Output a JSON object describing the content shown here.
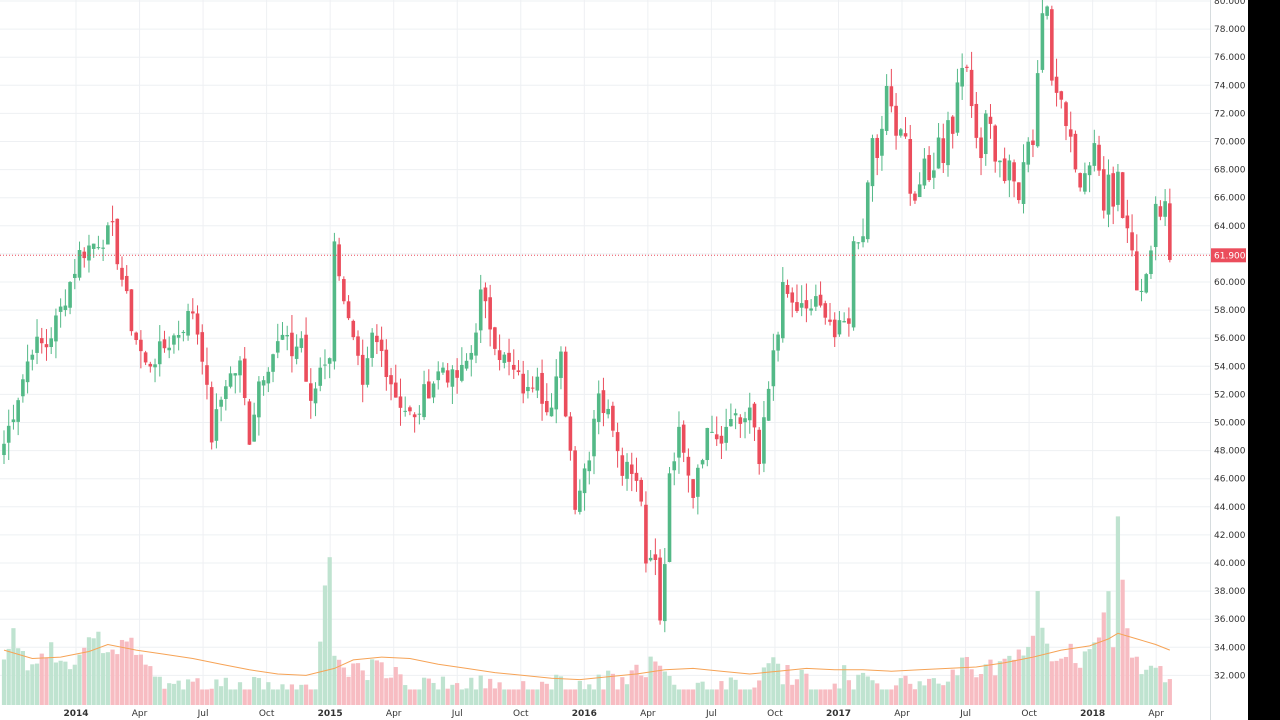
{
  "chart_data": {
    "type": "candlestick",
    "title": "",
    "colors": {
      "up": "#53b987",
      "down": "#eb4d5c",
      "up_volume": "#bfe3d0",
      "down_volume": "#f7bcc2",
      "ma": "#f6a356",
      "price_line": "#eb4d5c",
      "label_bg": "#eb4d5c"
    },
    "y_axis": {
      "min": 32,
      "max": 80,
      "step": 2,
      "decimals": 3,
      "position": "right"
    },
    "x_ticks": [
      {
        "label": "2014",
        "date": "2014-01",
        "bold": true
      },
      {
        "label": "Apr",
        "date": "2014-04",
        "bold": false
      },
      {
        "label": "Jul",
        "date": "2014-07",
        "bold": false
      },
      {
        "label": "Oct",
        "date": "2014-10",
        "bold": false
      },
      {
        "label": "2015",
        "date": "2015-01",
        "bold": true
      },
      {
        "label": "Apr",
        "date": "2015-04",
        "bold": false
      },
      {
        "label": "Jul",
        "date": "2015-07",
        "bold": false
      },
      {
        "label": "Oct",
        "date": "2015-10",
        "bold": false
      },
      {
        "label": "2016",
        "date": "2016-01",
        "bold": true
      },
      {
        "label": "Apr",
        "date": "2016-04",
        "bold": false
      },
      {
        "label": "Jul",
        "date": "2016-07",
        "bold": false
      },
      {
        "label": "Oct",
        "date": "2016-10",
        "bold": false
      },
      {
        "label": "2017",
        "date": "2017-01",
        "bold": true
      },
      {
        "label": "Apr",
        "date": "2017-04",
        "bold": false
      },
      {
        "label": "Jul",
        "date": "2017-07",
        "bold": false
      },
      {
        "label": "Oct",
        "date": "2017-10",
        "bold": false
      },
      {
        "label": "2018",
        "date": "2018-01",
        "bold": true
      },
      {
        "label": "Apr",
        "date": "2018-04",
        "bold": false
      }
    ],
    "last_price": 61.9,
    "last_price_label": "61.900",
    "close_anchors": [
      [
        0,
        48.5
      ],
      [
        3,
        52
      ],
      [
        6,
        55.5
      ],
      [
        9,
        55.5
      ],
      [
        12,
        58
      ],
      [
        16,
        62
      ],
      [
        20,
        63
      ],
      [
        23,
        63.5
      ],
      [
        27,
        57
      ],
      [
        30,
        54
      ],
      [
        33,
        55
      ],
      [
        37,
        56.5
      ],
      [
        40,
        58
      ],
      [
        42,
        55
      ],
      [
        44,
        49
      ],
      [
        47,
        53
      ],
      [
        50,
        54
      ],
      [
        52,
        49
      ],
      [
        54,
        53
      ],
      [
        57,
        55
      ],
      [
        59,
        56
      ],
      [
        61,
        55
      ],
      [
        63,
        56
      ],
      [
        64,
        53
      ],
      [
        65,
        51
      ],
      [
        67,
        54
      ],
      [
        69,
        55
      ],
      [
        70,
        62.5
      ],
      [
        71,
        61
      ],
      [
        73,
        57
      ],
      [
        75,
        54
      ],
      [
        76,
        52
      ],
      [
        78,
        56
      ],
      [
        80,
        55
      ],
      [
        81,
        54
      ],
      [
        83,
        52
      ],
      [
        85,
        51
      ],
      [
        87,
        50
      ],
      [
        89,
        52
      ],
      [
        91,
        53
      ],
      [
        93,
        54
      ],
      [
        95,
        53
      ],
      [
        97,
        53.5
      ],
      [
        99,
        55
      ],
      [
        101,
        59
      ],
      [
        103,
        57
      ],
      [
        105,
        55
      ],
      [
        107,
        54
      ],
      [
        109,
        53
      ],
      [
        111,
        52
      ],
      [
        113,
        54
      ],
      [
        114,
        52
      ],
      [
        116,
        51
      ],
      [
        118,
        54.5
      ],
      [
        119,
        51
      ],
      [
        120,
        48
      ],
      [
        121,
        44.5
      ],
      [
        122,
        45.5
      ],
      [
        124,
        48
      ],
      [
        125,
        50.5
      ],
      [
        126,
        52.5
      ],
      [
        127,
        51
      ],
      [
        129,
        50
      ],
      [
        131,
        47
      ],
      [
        133,
        47
      ],
      [
        135,
        45
      ],
      [
        136,
        40
      ],
      [
        137,
        40.5
      ],
      [
        138,
        41
      ],
      [
        139,
        35.5
      ],
      [
        140,
        40
      ],
      [
        141,
        46
      ],
      [
        143,
        49
      ],
      [
        145,
        46
      ],
      [
        146,
        45
      ],
      [
        147,
        47
      ],
      [
        149,
        49
      ],
      [
        150,
        50
      ],
      [
        152,
        49
      ],
      [
        154,
        51
      ],
      [
        156,
        50
      ],
      [
        158,
        51
      ],
      [
        160,
        47
      ],
      [
        161,
        50.5
      ],
      [
        162,
        53
      ],
      [
        164,
        56
      ],
      [
        165,
        60
      ],
      [
        166,
        58.5
      ],
      [
        168,
        58
      ],
      [
        170,
        57.5
      ],
      [
        172,
        59
      ],
      [
        174,
        57
      ],
      [
        176,
        56
      ],
      [
        178,
        57
      ],
      [
        179,
        56.5
      ],
      [
        180,
        63
      ],
      [
        181,
        63.5
      ],
      [
        182,
        62.5
      ],
      [
        183,
        67
      ],
      [
        184,
        70
      ],
      [
        185,
        69
      ],
      [
        186,
        70.5
      ],
      [
        187,
        73.5
      ],
      [
        188,
        72.5
      ],
      [
        189,
        70.5
      ],
      [
        191,
        70
      ],
      [
        192,
        67
      ],
      [
        193,
        66
      ],
      [
        195,
        68
      ],
      [
        196,
        67
      ],
      [
        198,
        70
      ],
      [
        199,
        69
      ],
      [
        200,
        72
      ],
      [
        201,
        70.5
      ],
      [
        202,
        74.5
      ],
      [
        203,
        76
      ],
      [
        204,
        74.5
      ],
      [
        205,
        72.5
      ],
      [
        206,
        71
      ],
      [
        207,
        69
      ],
      [
        208,
        72.5
      ],
      [
        209,
        71
      ],
      [
        210,
        69
      ],
      [
        212,
        67.5
      ],
      [
        213,
        68
      ],
      [
        215,
        66
      ],
      [
        216,
        68
      ],
      [
        217,
        70.5
      ],
      [
        218,
        70
      ],
      [
        219,
        75
      ],
      [
        220,
        78.5
      ],
      [
        221,
        79.5
      ],
      [
        222,
        75
      ],
      [
        223,
        74
      ],
      [
        224,
        73
      ],
      [
        225,
        71.5
      ],
      [
        226,
        70.5
      ],
      [
        227,
        68
      ],
      [
        228,
        67
      ],
      [
        229,
        68.5
      ],
      [
        230,
        69
      ],
      [
        231,
        69.5
      ],
      [
        232,
        68
      ],
      [
        233,
        65
      ],
      [
        234,
        67
      ],
      [
        235,
        66
      ],
      [
        236,
        68
      ],
      [
        237,
        65
      ],
      [
        238,
        64
      ],
      [
        239,
        63
      ],
      [
        240,
        60
      ],
      [
        241,
        59
      ],
      [
        242,
        60
      ],
      [
        243,
        63
      ],
      [
        244,
        65.5
      ],
      [
        245,
        65
      ],
      [
        246,
        66
      ],
      [
        247,
        62
      ]
    ],
    "volume_profile": [
      [
        0,
        33.5
      ],
      [
        2,
        35.5
      ],
      [
        6,
        33
      ],
      [
        10,
        34.5
      ],
      [
        14,
        33
      ],
      [
        18,
        35.5
      ],
      [
        22,
        35
      ],
      [
        24,
        34.5
      ],
      [
        26,
        35.5
      ],
      [
        30,
        33
      ],
      [
        34,
        32.3
      ],
      [
        40,
        31.6
      ],
      [
        44,
        32.5
      ],
      [
        48,
        31.8
      ],
      [
        52,
        32
      ],
      [
        58,
        31.5
      ],
      [
        62,
        31.8
      ],
      [
        66,
        31.9
      ],
      [
        68,
        39.5
      ],
      [
        69,
        42
      ],
      [
        70,
        34
      ],
      [
        72,
        33
      ],
      [
        76,
        33
      ],
      [
        80,
        33.5
      ],
      [
        84,
        32.5
      ],
      [
        88,
        32
      ],
      [
        92,
        32.2
      ],
      [
        96,
        31.8
      ],
      [
        100,
        32.2
      ],
      [
        104,
        32
      ],
      [
        108,
        31.9
      ],
      [
        112,
        31.6
      ],
      [
        116,
        31.6
      ],
      [
        118,
        32.8
      ],
      [
        120,
        31.5
      ],
      [
        124,
        31.8
      ],
      [
        128,
        32.5
      ],
      [
        132,
        32.2
      ],
      [
        136,
        33.4
      ],
      [
        138,
        33.6
      ],
      [
        140,
        32.5
      ],
      [
        144,
        32
      ],
      [
        148,
        31.8
      ],
      [
        152,
        32
      ],
      [
        156,
        31.8
      ],
      [
        160,
        32.5
      ],
      [
        162,
        33.8
      ],
      [
        164,
        33
      ],
      [
        168,
        32.5
      ],
      [
        172,
        32.2
      ],
      [
        176,
        32
      ],
      [
        178,
        33
      ],
      [
        180,
        32.2
      ],
      [
        184,
        32.5
      ],
      [
        188,
        32
      ],
      [
        192,
        32.2
      ],
      [
        196,
        32.5
      ],
      [
        200,
        32.8
      ],
      [
        204,
        33.5
      ],
      [
        208,
        33.2
      ],
      [
        212,
        33.6
      ],
      [
        216,
        34
      ],
      [
        218,
        35
      ],
      [
        219,
        38.1
      ],
      [
        221,
        34.5
      ],
      [
        224,
        34.5
      ],
      [
        228,
        34
      ],
      [
        230,
        35
      ],
      [
        232,
        34.8
      ],
      [
        234,
        39
      ],
      [
        235,
        34.6
      ],
      [
        236,
        43.5
      ],
      [
        238,
        35.5
      ],
      [
        240,
        34
      ],
      [
        242,
        33
      ],
      [
        244,
        33.2
      ],
      [
        246,
        32.5
      ],
      [
        247,
        32.3
      ]
    ],
    "ma_points": [
      [
        0,
        33.8
      ],
      [
        6,
        33.2
      ],
      [
        12,
        33.3
      ],
      [
        18,
        33.7
      ],
      [
        22,
        34.2
      ],
      [
        28,
        33.8
      ],
      [
        34,
        33.5
      ],
      [
        40,
        33.2
      ],
      [
        46,
        32.8
      ],
      [
        52,
        32.4
      ],
      [
        58,
        32.1
      ],
      [
        64,
        32.0
      ],
      [
        70,
        32.5
      ],
      [
        74,
        33.1
      ],
      [
        80,
        33.3
      ],
      [
        86,
        33.2
      ],
      [
        92,
        32.8
      ],
      [
        98,
        32.5
      ],
      [
        104,
        32.2
      ],
      [
        110,
        32.0
      ],
      [
        116,
        31.8
      ],
      [
        122,
        31.7
      ],
      [
        128,
        31.9
      ],
      [
        134,
        32.1
      ],
      [
        140,
        32.4
      ],
      [
        146,
        32.5
      ],
      [
        152,
        32.3
      ],
      [
        158,
        32.1
      ],
      [
        164,
        32.3
      ],
      [
        170,
        32.5
      ],
      [
        176,
        32.4
      ],
      [
        182,
        32.4
      ],
      [
        188,
        32.3
      ],
      [
        194,
        32.4
      ],
      [
        200,
        32.5
      ],
      [
        206,
        32.6
      ],
      [
        212,
        32.9
      ],
      [
        218,
        33.3
      ],
      [
        224,
        33.8
      ],
      [
        230,
        34.1
      ],
      [
        234,
        34.6
      ],
      [
        236,
        35.0
      ],
      [
        240,
        34.6
      ],
      [
        244,
        34.2
      ],
      [
        247,
        33.8
      ]
    ]
  }
}
